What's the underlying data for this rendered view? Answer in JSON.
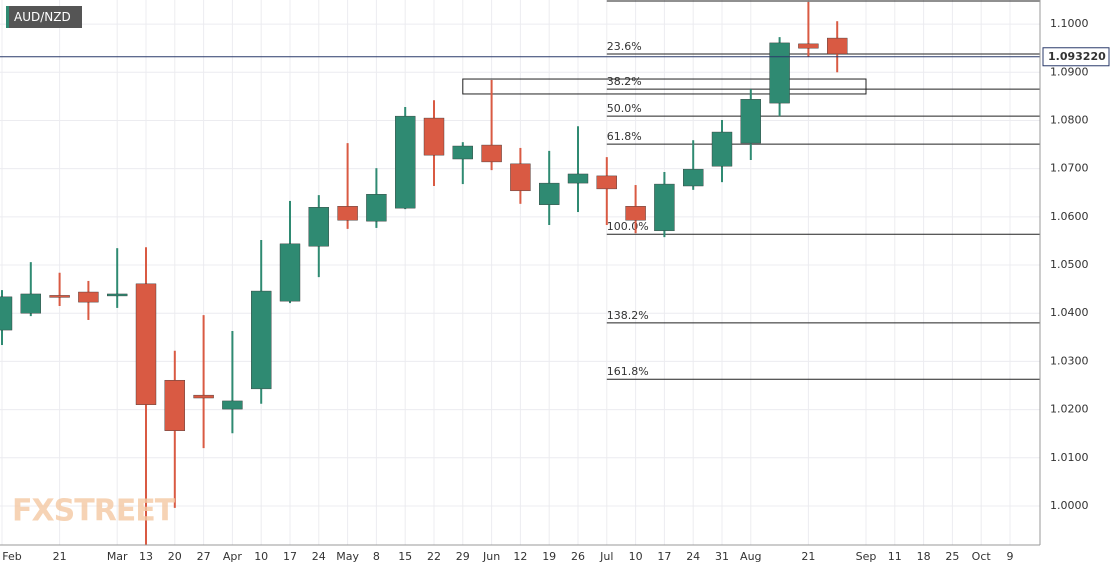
{
  "chart_data": {
    "type": "candlestick",
    "title": "AUD/NZD",
    "watermark": "FXSTREET",
    "categories": [
      "Feb",
      null,
      "21",
      null,
      "Mar",
      "13",
      "20",
      "27",
      "Apr",
      "10",
      "17",
      "24",
      "May",
      "8",
      "15",
      "22",
      "29",
      "Jun",
      "12",
      "19",
      "26",
      "Jul",
      "10",
      "17",
      "24",
      "31",
      "Aug",
      null,
      "21",
      null,
      "Sep",
      "11",
      "18",
      "25",
      "Oct",
      "9"
    ],
    "open": [
      1.0365,
      1.04,
      1.0437,
      1.0444,
      1.0438,
      1.0461,
      1.0261,
      1.023,
      1.0201,
      1.0243,
      1.0425,
      1.0539,
      1.0622,
      1.0591,
      1.0618,
      1.0805,
      1.072,
      1.0749,
      1.071,
      1.0625,
      1.067,
      1.0685,
      1.0622,
      1.0571,
      1.0664,
      1.0705,
      1.0753,
      1.0836,
      1.0959,
      1.0971,
      null,
      null,
      null,
      null,
      null,
      null
    ],
    "high": [
      1.0448,
      1.0506,
      1.0484,
      1.0467,
      1.0535,
      1.0537,
      1.0322,
      1.0396,
      1.0363,
      1.0552,
      1.0633,
      1.0645,
      1.0753,
      1.0701,
      1.0828,
      1.0842,
      1.0755,
      1.0884,
      1.0743,
      1.0737,
      1.0788,
      1.0724,
      1.0666,
      1.0693,
      1.0759,
      1.0801,
      1.0865,
      1.0973,
      1.1046,
      1.1006,
      null,
      null,
      null,
      null,
      null,
      null
    ],
    "low": [
      1.0334,
      1.0394,
      1.0415,
      1.0386,
      1.0411,
      0.9919,
      0.9996,
      1.012,
      1.0151,
      1.0212,
      1.0421,
      1.0475,
      1.0575,
      1.0577,
      1.0616,
      1.0664,
      1.0668,
      1.0697,
      1.0627,
      1.0583,
      1.061,
      1.0583,
      1.0566,
      1.0558,
      1.0656,
      1.0672,
      1.0718,
      1.0809,
      1.0932,
      1.09,
      null,
      null,
      null,
      null,
      null,
      null
    ],
    "close": [
      1.0434,
      1.044,
      1.0435,
      1.0423,
      1.044,
      1.021,
      1.0156,
      1.0224,
      1.0218,
      1.0446,
      1.0544,
      1.062,
      1.0593,
      1.0647,
      1.0809,
      1.0728,
      1.0747,
      1.0714,
      1.0654,
      1.067,
      1.0689,
      1.0658,
      1.0593,
      1.0668,
      1.0699,
      1.0776,
      1.0844,
      1.0961,
      1.095,
      1.0938,
      null,
      null,
      null,
      null,
      null,
      null
    ],
    "up_color": "#2f8a72",
    "down_color": "#d95a43",
    "ylim": [
      0.9919,
      1.105
    ],
    "yticks": [
      {
        "value": 1.0,
        "label": "1.0000"
      },
      {
        "value": 1.01,
        "label": "1.0100"
      },
      {
        "value": 1.02,
        "label": "1.0200"
      },
      {
        "value": 1.03,
        "label": "1.0300"
      },
      {
        "value": 1.04,
        "label": "1.0400"
      },
      {
        "value": 1.05,
        "label": "1.0500"
      },
      {
        "value": 1.06,
        "label": "1.0600"
      },
      {
        "value": 1.07,
        "label": "1.0700"
      },
      {
        "value": 1.08,
        "label": "1.0800"
      },
      {
        "value": 1.09,
        "label": "1.0900"
      },
      {
        "value": 1.1,
        "label": "1.1000"
      }
    ],
    "grid": true,
    "current_price": {
      "value": 1.09322,
      "label": "1.093220"
    },
    "fib_high": 1.1048,
    "fib_levels": [
      {
        "label": "23.6%",
        "price": 1.0938
      },
      {
        "label": "38.2%",
        "price": 1.0865
      },
      {
        "label": "50.0%",
        "price": 1.0809
      },
      {
        "label": "61.8%",
        "price": 1.0751
      },
      {
        "label": "100.0%",
        "price": 1.0564
      },
      {
        "label": "138.2%",
        "price": 1.038
      },
      {
        "label": "161.8%",
        "price": 1.0263
      }
    ],
    "zone": {
      "high": 1.0886,
      "low": 1.0855
    }
  }
}
